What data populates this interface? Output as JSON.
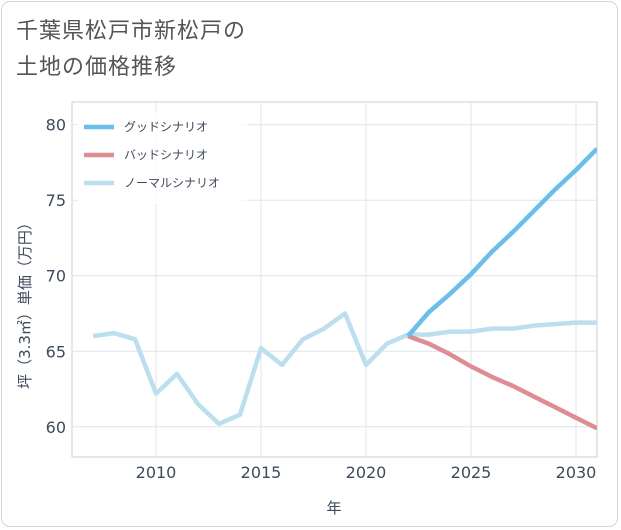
{
  "title_lines": [
    "千葉県松戸市新松戸の",
    "土地の価格推移"
  ],
  "chart_data": {
    "type": "line",
    "xlabel": "年",
    "ylabel": "坪（3.3㎡）単価（万円）",
    "xlim": [
      2006,
      2031
    ],
    "ylim": [
      58,
      81.5
    ],
    "xticks": [
      2010,
      2015,
      2020,
      2025,
      2030
    ],
    "yticks": [
      60,
      65,
      70,
      75,
      80
    ],
    "grid": true,
    "legend_position": "top-left",
    "series": [
      {
        "name": "グッドシナリオ",
        "color": "#6bbdec",
        "x": [
          2022,
          2023,
          2024,
          2025,
          2026,
          2027,
          2028,
          2029,
          2030,
          2031
        ],
        "y": [
          66.0,
          67.6,
          68.8,
          70.1,
          71.6,
          72.9,
          74.3,
          75.7,
          77.0,
          78.4
        ]
      },
      {
        "name": "バッドシナリオ",
        "color": "#de8d93",
        "x": [
          2022,
          2023,
          2024,
          2025,
          2026,
          2027,
          2028,
          2029,
          2030,
          2031
        ],
        "y": [
          66.0,
          65.5,
          64.8,
          64.0,
          63.3,
          62.7,
          62.0,
          61.3,
          60.6,
          59.9
        ]
      },
      {
        "name": "ノーマルシナリオ",
        "color": "#bcdfee",
        "x": [
          2007,
          2008,
          2009,
          2010,
          2011,
          2012,
          2013,
          2014,
          2015,
          2016,
          2017,
          2018,
          2019,
          2020,
          2021,
          2022,
          2023,
          2024,
          2025,
          2026,
          2027,
          2028,
          2029,
          2030,
          2031
        ],
        "y": [
          66.0,
          66.2,
          65.8,
          62.2,
          63.5,
          61.5,
          60.2,
          60.8,
          65.2,
          64.1,
          65.8,
          66.5,
          67.5,
          64.1,
          65.5,
          66.1,
          66.1,
          66.3,
          66.3,
          66.5,
          66.5,
          66.7,
          66.8,
          66.9,
          66.9
        ]
      }
    ]
  }
}
